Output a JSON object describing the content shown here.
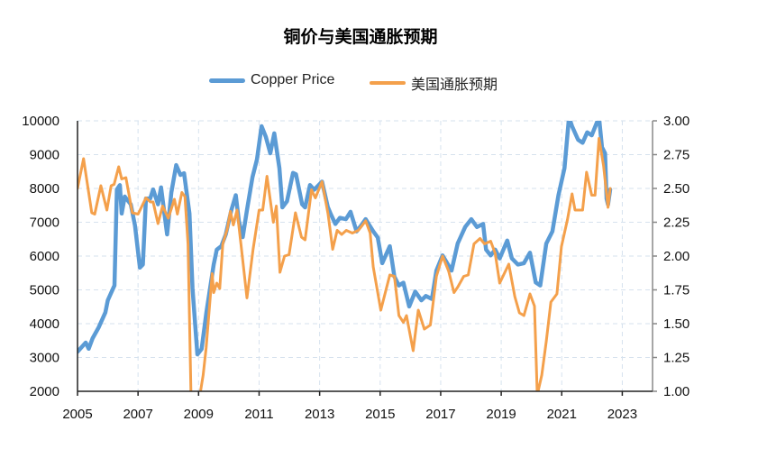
{
  "chart_data": {
    "type": "line",
    "title": "铜价与美国通胀预期",
    "legend_position": "top",
    "grid": true,
    "x_ticks": [
      "2005",
      "2007",
      "2009",
      "2011",
      "2013",
      "2015",
      "2017",
      "2019",
      "2021",
      "2023"
    ],
    "xlim": [
      2005,
      2024
    ],
    "y_left": {
      "lim": [
        2000,
        10000
      ],
      "ticks": [
        "2000",
        "3000",
        "4000",
        "5000",
        "6000",
        "7000",
        "8000",
        "9000",
        "10000"
      ]
    },
    "y_right": {
      "lim": [
        1.0,
        3.0
      ],
      "ticks": [
        "1.00",
        "1.25",
        "1.50",
        "1.75",
        "2.00",
        "2.25",
        "2.50",
        "2.75",
        "3.00"
      ]
    },
    "series": [
      {
        "name": "Copper Price",
        "axis": "left",
        "color": "#5B9BD5",
        "points": [
          [
            2005.0,
            3170
          ],
          [
            2005.27,
            3440
          ],
          [
            2005.37,
            3260
          ],
          [
            2005.5,
            3570
          ],
          [
            2005.7,
            3890
          ],
          [
            2005.92,
            4330
          ],
          [
            2006.0,
            4690
          ],
          [
            2006.22,
            5130
          ],
          [
            2006.3,
            7970
          ],
          [
            2006.4,
            8100
          ],
          [
            2006.46,
            7260
          ],
          [
            2006.56,
            7760
          ],
          [
            2006.76,
            7530
          ],
          [
            2006.9,
            6900
          ],
          [
            2007.06,
            5660
          ],
          [
            2007.16,
            5750
          ],
          [
            2007.26,
            7700
          ],
          [
            2007.4,
            7700
          ],
          [
            2007.5,
            7970
          ],
          [
            2007.66,
            7530
          ],
          [
            2007.76,
            8030
          ],
          [
            2007.96,
            6640
          ],
          [
            2008.1,
            7880
          ],
          [
            2008.26,
            8690
          ],
          [
            2008.4,
            8400
          ],
          [
            2008.52,
            8450
          ],
          [
            2008.7,
            7260
          ],
          [
            2008.8,
            5040
          ],
          [
            2008.96,
            3090
          ],
          [
            2009.1,
            3250
          ],
          [
            2009.26,
            4330
          ],
          [
            2009.5,
            5750
          ],
          [
            2009.6,
            6190
          ],
          [
            2009.75,
            6290
          ],
          [
            2009.9,
            6640
          ],
          [
            2010.08,
            7350
          ],
          [
            2010.23,
            7800
          ],
          [
            2010.33,
            7040
          ],
          [
            2010.46,
            6560
          ],
          [
            2010.6,
            7360
          ],
          [
            2010.78,
            8330
          ],
          [
            2010.93,
            8860
          ],
          [
            2011.08,
            9840
          ],
          [
            2011.22,
            9530
          ],
          [
            2011.37,
            9040
          ],
          [
            2011.5,
            9630
          ],
          [
            2011.67,
            8600
          ],
          [
            2011.77,
            7440
          ],
          [
            2011.92,
            7620
          ],
          [
            2012.12,
            8460
          ],
          [
            2012.22,
            8420
          ],
          [
            2012.42,
            7530
          ],
          [
            2012.52,
            7440
          ],
          [
            2012.68,
            8100
          ],
          [
            2012.82,
            7960
          ],
          [
            2013.08,
            8200
          ],
          [
            2013.27,
            7450
          ],
          [
            2013.36,
            7260
          ],
          [
            2013.52,
            6950
          ],
          [
            2013.67,
            7130
          ],
          [
            2013.87,
            7090
          ],
          [
            2014.02,
            7310
          ],
          [
            2014.22,
            6730
          ],
          [
            2014.37,
            6900
          ],
          [
            2014.52,
            7090
          ],
          [
            2014.77,
            6730
          ],
          [
            2014.92,
            6550
          ],
          [
            2015.07,
            5790
          ],
          [
            2015.32,
            6290
          ],
          [
            2015.47,
            5390
          ],
          [
            2015.62,
            5130
          ],
          [
            2015.77,
            5210
          ],
          [
            2015.96,
            4510
          ],
          [
            2016.16,
            4950
          ],
          [
            2016.36,
            4690
          ],
          [
            2016.51,
            4820
          ],
          [
            2016.71,
            4730
          ],
          [
            2016.86,
            5570
          ],
          [
            2017.06,
            6020
          ],
          [
            2017.36,
            5570
          ],
          [
            2017.56,
            6370
          ],
          [
            2017.81,
            6860
          ],
          [
            2018.01,
            7090
          ],
          [
            2018.2,
            6860
          ],
          [
            2018.4,
            6950
          ],
          [
            2018.5,
            6190
          ],
          [
            2018.65,
            6020
          ],
          [
            2018.8,
            6190
          ],
          [
            2018.95,
            5930
          ],
          [
            2019.2,
            6460
          ],
          [
            2019.35,
            5930
          ],
          [
            2019.55,
            5750
          ],
          [
            2019.75,
            5790
          ],
          [
            2019.95,
            6100
          ],
          [
            2020.14,
            5220
          ],
          [
            2020.29,
            5130
          ],
          [
            2020.49,
            6370
          ],
          [
            2020.69,
            6730
          ],
          [
            2020.89,
            7800
          ],
          [
            2021.09,
            8600
          ],
          [
            2021.24,
            10200
          ],
          [
            2021.34,
            9840
          ],
          [
            2021.54,
            9440
          ],
          [
            2021.69,
            9350
          ],
          [
            2021.84,
            9660
          ],
          [
            2021.99,
            9570
          ],
          [
            2022.23,
            10300
          ],
          [
            2022.33,
            9220
          ],
          [
            2022.43,
            9040
          ],
          [
            2022.48,
            7700
          ],
          [
            2022.53,
            7520
          ],
          [
            2022.6,
            7970
          ]
        ]
      },
      {
        "name": "美国通胀预期",
        "axis": "right",
        "color": "#F4A04B",
        "points": [
          [
            2005.0,
            2.5
          ],
          [
            2005.2,
            2.72
          ],
          [
            2005.3,
            2.57
          ],
          [
            2005.47,
            2.32
          ],
          [
            2005.57,
            2.31
          ],
          [
            2005.77,
            2.52
          ],
          [
            2005.97,
            2.34
          ],
          [
            2006.11,
            2.52
          ],
          [
            2006.21,
            2.53
          ],
          [
            2006.36,
            2.66
          ],
          [
            2006.46,
            2.57
          ],
          [
            2006.6,
            2.58
          ],
          [
            2006.81,
            2.32
          ],
          [
            2007.0,
            2.31
          ],
          [
            2007.26,
            2.43
          ],
          [
            2007.41,
            2.4
          ],
          [
            2007.5,
            2.4
          ],
          [
            2007.66,
            2.24
          ],
          [
            2007.81,
            2.37
          ],
          [
            2008.0,
            2.28
          ],
          [
            2008.2,
            2.42
          ],
          [
            2008.3,
            2.31
          ],
          [
            2008.45,
            2.47
          ],
          [
            2008.55,
            2.44
          ],
          [
            2008.65,
            2.09
          ],
          [
            2008.75,
            0.5
          ],
          [
            2008.9,
            0.3
          ],
          [
            2009.05,
            0.98
          ],
          [
            2009.15,
            1.12
          ],
          [
            2009.25,
            1.32
          ],
          [
            2009.45,
            1.87
          ],
          [
            2009.5,
            1.73
          ],
          [
            2009.6,
            1.8
          ],
          [
            2009.7,
            1.76
          ],
          [
            2009.8,
            2.09
          ],
          [
            2009.95,
            2.2
          ],
          [
            2010.05,
            2.33
          ],
          [
            2010.15,
            2.23
          ],
          [
            2010.27,
            2.34
          ],
          [
            2010.4,
            2.09
          ],
          [
            2010.6,
            1.69
          ],
          [
            2010.8,
            2.05
          ],
          [
            2011.0,
            2.34
          ],
          [
            2011.12,
            2.34
          ],
          [
            2011.26,
            2.59
          ],
          [
            2011.47,
            2.25
          ],
          [
            2011.57,
            2.37
          ],
          [
            2011.69,
            1.88
          ],
          [
            2011.84,
            2.0
          ],
          [
            2011.99,
            2.01
          ],
          [
            2012.2,
            2.32
          ],
          [
            2012.4,
            2.14
          ],
          [
            2012.52,
            2.12
          ],
          [
            2012.73,
            2.49
          ],
          [
            2012.86,
            2.43
          ],
          [
            2013.08,
            2.55
          ],
          [
            2013.28,
            2.31
          ],
          [
            2013.43,
            2.05
          ],
          [
            2013.58,
            2.19
          ],
          [
            2013.73,
            2.16
          ],
          [
            2013.88,
            2.19
          ],
          [
            2014.08,
            2.17
          ],
          [
            2014.28,
            2.19
          ],
          [
            2014.52,
            2.26
          ],
          [
            2014.67,
            2.17
          ],
          [
            2014.77,
            1.92
          ],
          [
            2015.02,
            1.6
          ],
          [
            2015.17,
            1.73
          ],
          [
            2015.32,
            1.86
          ],
          [
            2015.47,
            1.85
          ],
          [
            2015.62,
            1.56
          ],
          [
            2015.77,
            1.51
          ],
          [
            2015.87,
            1.56
          ],
          [
            2016.09,
            1.3
          ],
          [
            2016.26,
            1.6
          ],
          [
            2016.46,
            1.46
          ],
          [
            2016.66,
            1.49
          ],
          [
            2016.86,
            1.85
          ],
          [
            2017.06,
            2.0
          ],
          [
            2017.26,
            1.89
          ],
          [
            2017.44,
            1.73
          ],
          [
            2017.56,
            1.77
          ],
          [
            2017.76,
            1.85
          ],
          [
            2017.91,
            1.86
          ],
          [
            2018.1,
            2.09
          ],
          [
            2018.3,
            2.13
          ],
          [
            2018.45,
            2.09
          ],
          [
            2018.65,
            2.11
          ],
          [
            2018.8,
            2.02
          ],
          [
            2018.95,
            1.8
          ],
          [
            2019.25,
            1.94
          ],
          [
            2019.45,
            1.7
          ],
          [
            2019.6,
            1.58
          ],
          [
            2019.75,
            1.56
          ],
          [
            2019.95,
            1.72
          ],
          [
            2020.1,
            1.63
          ],
          [
            2020.19,
            0.8
          ],
          [
            2020.34,
            1.12
          ],
          [
            2020.49,
            1.37
          ],
          [
            2020.64,
            1.66
          ],
          [
            2020.84,
            1.72
          ],
          [
            2020.99,
            2.07
          ],
          [
            2021.19,
            2.27
          ],
          [
            2021.34,
            2.46
          ],
          [
            2021.44,
            2.34
          ],
          [
            2021.69,
            2.34
          ],
          [
            2021.82,
            2.62
          ],
          [
            2021.99,
            2.45
          ],
          [
            2022.1,
            2.45
          ],
          [
            2022.23,
            2.87
          ],
          [
            2022.38,
            2.67
          ],
          [
            2022.53,
            2.36
          ],
          [
            2022.6,
            2.5
          ]
        ]
      }
    ]
  }
}
